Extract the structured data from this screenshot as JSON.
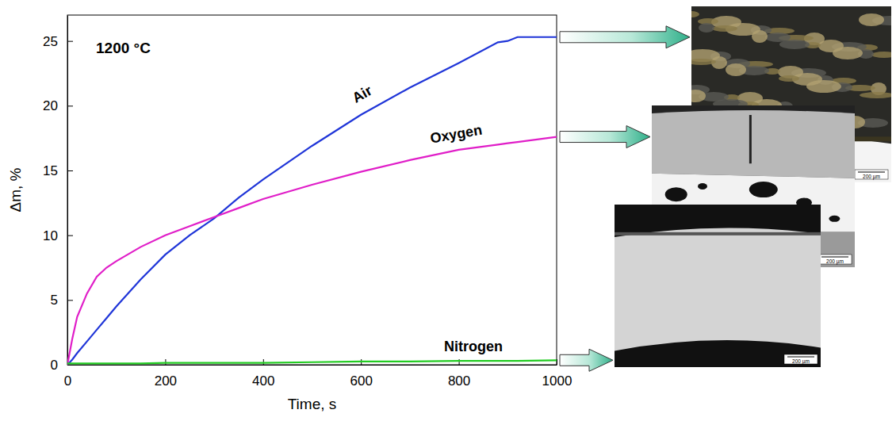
{
  "chart_data": {
    "type": "line",
    "annotation": "1200 °C",
    "x_label": "Time, s",
    "y_label": "Δm, %",
    "x": [
      0,
      10,
      20,
      40,
      60,
      80,
      100,
      150,
      200,
      250,
      300,
      350,
      400,
      500,
      600,
      700,
      800,
      880,
      900,
      920,
      1000
    ],
    "series": [
      {
        "name": "Air",
        "color": "#1f35d8",
        "values": [
          0,
          0.4,
          0.9,
          1.8,
          2.7,
          3.6,
          4.5,
          6.6,
          8.5,
          10.0,
          11.3,
          12.9,
          14.3,
          16.9,
          19.3,
          21.4,
          23.3,
          24.9,
          25.0,
          25.3,
          25.3
        ]
      },
      {
        "name": "Oxygen",
        "color": "#e01ec8",
        "values": [
          0,
          2.0,
          3.7,
          5.5,
          6.8,
          7.5,
          8.0,
          9.1,
          10.0,
          10.7,
          11.4,
          12.1,
          12.8,
          13.9,
          14.9,
          15.8,
          16.6,
          17.0,
          17.1,
          17.2,
          17.6
        ]
      },
      {
        "name": "Nitrogen",
        "color": "#22cc22",
        "values": [
          0.1,
          0.1,
          0.1,
          0.1,
          0.1,
          0.1,
          0.1,
          0.1,
          0.15,
          0.15,
          0.15,
          0.15,
          0.15,
          0.2,
          0.25,
          0.25,
          0.3,
          0.3,
          0.3,
          0.3,
          0.35
        ]
      }
    ],
    "xlim": [
      0,
      1000
    ],
    "xticks": [
      0,
      200,
      400,
      600,
      800,
      1000
    ],
    "ylim": [
      0,
      27
    ],
    "yticks": [
      0,
      5,
      10,
      15,
      20,
      25
    ],
    "grid": false
  },
  "micrographs": [
    {
      "scale_bar": "200 µm"
    },
    {
      "scale_bar": "200 µm"
    },
    {
      "scale_bar": "200 µm"
    }
  ]
}
